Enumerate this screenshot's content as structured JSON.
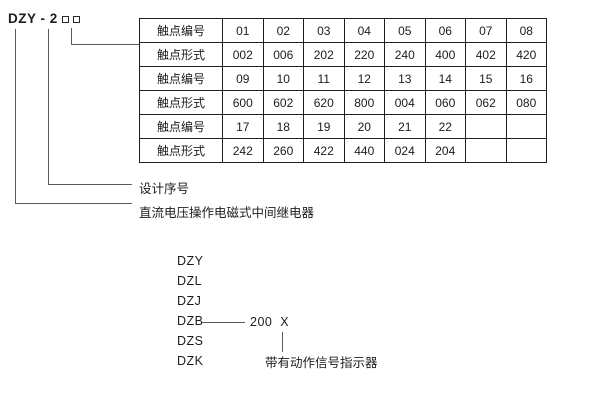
{
  "model_code": {
    "text": "DZY - 2"
  },
  "contact_table": {
    "rows": [
      {
        "header": "触点编号",
        "cells": [
          "01",
          "02",
          "03",
          "04",
          "05",
          "06",
          "07",
          "08"
        ]
      },
      {
        "header": "触点形式",
        "cells": [
          "002",
          "006",
          "202",
          "220",
          "240",
          "400",
          "402",
          "420"
        ]
      },
      {
        "header": "触点编号",
        "cells": [
          "09",
          "10",
          "11",
          "12",
          "13",
          "14",
          "15",
          "16"
        ]
      },
      {
        "header": "触点形式",
        "cells": [
          "600",
          "602",
          "620",
          "800",
          "004",
          "060",
          "062",
          "080"
        ]
      },
      {
        "header": "触点编号",
        "cells": [
          "17",
          "18",
          "19",
          "20",
          "21",
          "22",
          "",
          ""
        ]
      },
      {
        "header": "触点形式",
        "cells": [
          "242",
          "260",
          "422",
          "440",
          "024",
          "204",
          "",
          ""
        ]
      }
    ]
  },
  "callouts": {
    "design_serial": "设计序号",
    "relay_type": "直流电压操作电磁式中间继电器"
  },
  "model_series": {
    "items": [
      "DZY",
      "DZL",
      "DZJ",
      "DZB",
      "DZS",
      "DZK"
    ],
    "dzb_value": "200  X",
    "indicator_note": "带有动作信号指示器"
  },
  "colors": {
    "text": "#1c1c1c",
    "table_border": "#1f1f1f",
    "connector_line": "#5a5a5a",
    "background": "#ffffff"
  }
}
